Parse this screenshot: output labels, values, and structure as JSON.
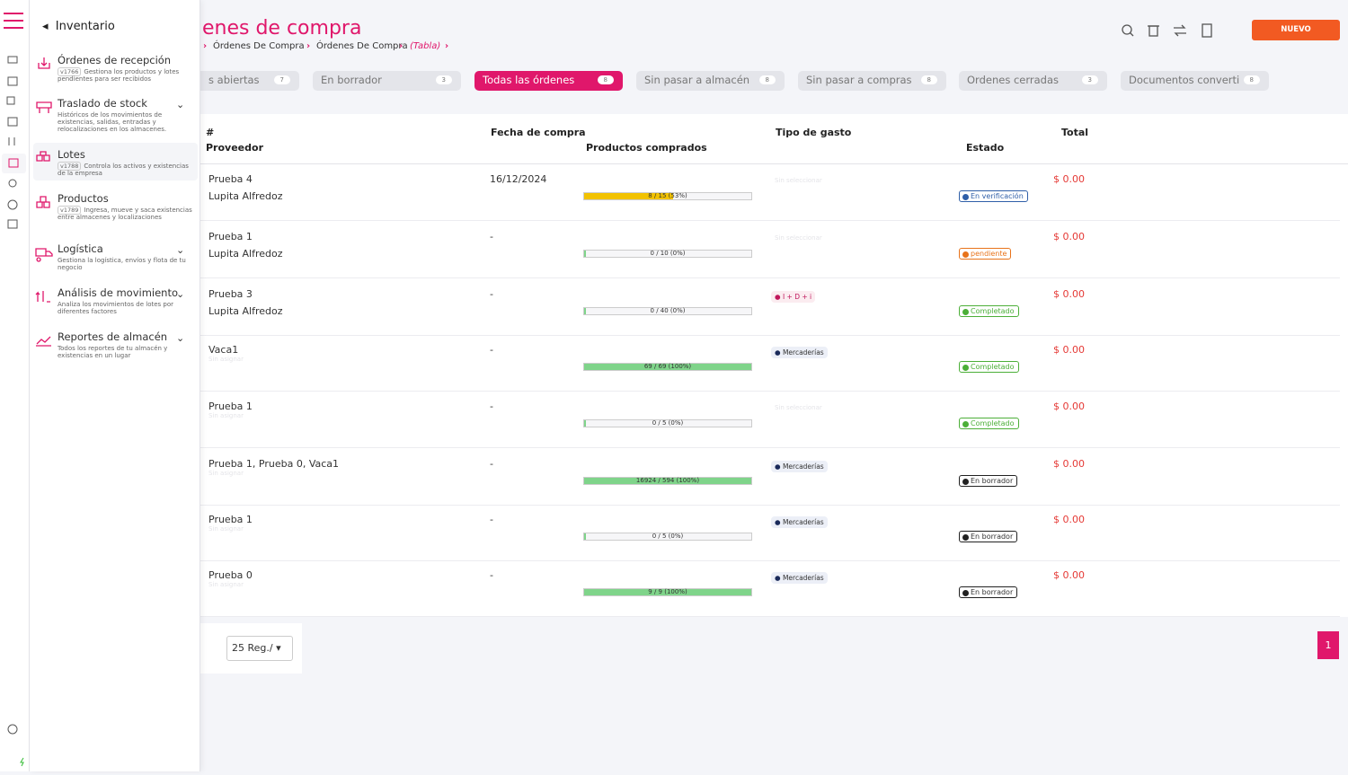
{
  "header": {
    "title": "enes de compra",
    "breadcrumb": [
      "Órdenes De Compra",
      "Órdenes De Compra",
      "(Tabla)"
    ],
    "new_button": "NUEVO"
  },
  "tabs": [
    {
      "label": "s abiertas",
      "count": "7"
    },
    {
      "label": "En borrador",
      "count": "3"
    },
    {
      "label": "Todas las órdenes",
      "count": "8",
      "active": true
    },
    {
      "label": "Sin pasar a almacén",
      "count": "8"
    },
    {
      "label": "Sin pasar a compras",
      "count": "8"
    },
    {
      "label": "Ordenes cerradas",
      "count": "3"
    },
    {
      "label": "Documentos converti",
      "count": "8"
    }
  ],
  "table": {
    "headers": {
      "number": "#",
      "provider": "Proveedor",
      "date": "Fecha de compra",
      "products": "Productos comprados",
      "expense": "Tipo de gasto",
      "status": "Estado",
      "total": "Total"
    },
    "rows": [
      {
        "name": "Prueba 4",
        "provider": "Lupita Alfredoz",
        "date": "16/12/2024",
        "progress_label": "8 / 15 (53%)",
        "progress": 53,
        "expense": "Sin seleccionar",
        "status": "En verificación",
        "status_color": "#2f5fa8",
        "total": "$ 0.00"
      },
      {
        "name": "Prueba 1",
        "provider": "Lupita Alfredoz",
        "date": "-",
        "progress_label": "0 / 10 (0%)",
        "progress": 0,
        "expense": "Sin seleccionar",
        "status": "pendiente",
        "status_color": "#e8731a",
        "total": "$ 0.00"
      },
      {
        "name": "Prueba 3",
        "provider": "Lupita Alfredoz",
        "date": "-",
        "progress_label": "0 / 40 (0%)",
        "progress": 0,
        "expense": "I + D + i",
        "status": "Completado",
        "status_color": "#4caf38",
        "total": "$ 0.00"
      },
      {
        "name": "Vaca1",
        "provider": "Sin asignar",
        "date": "-",
        "progress_label": "69 / 69 (100%)",
        "progress": 100,
        "expense": "Mercaderías",
        "status": "Completado",
        "status_color": "#4caf38",
        "total": "$ 0.00"
      },
      {
        "name": "Prueba 1",
        "provider": "Sin asignar",
        "date": "-",
        "progress_label": "0 / 5 (0%)",
        "progress": 0,
        "expense": "Sin seleccionar",
        "status": "Completado",
        "status_color": "#4caf38",
        "total": "$ 0.00"
      },
      {
        "name": "Prueba 1, Prueba 0, Vaca1",
        "provider": "Sin asignar",
        "date": "-",
        "progress_label": "16924 / 594 (100%)",
        "progress": 100,
        "expense": "Mercaderías",
        "status": "En borrador",
        "status_color": "#222222",
        "total": "$ 0.00"
      },
      {
        "name": "Prueba 1",
        "provider": "Sin asignar",
        "date": "-",
        "progress_label": "0 / 5 (0%)",
        "progress": 0,
        "expense": "Mercaderías",
        "status": "En borrador",
        "status_color": "#222222",
        "total": "$ 0.00"
      },
      {
        "name": "Prueba 0",
        "provider": "Sin asignar",
        "date": "-",
        "progress_label": "9 / 9 (100%)",
        "progress": 100,
        "expense": "Mercaderías",
        "status": "En borrador",
        "status_color": "#222222",
        "total": "$ 0.00"
      }
    ]
  },
  "pagination": {
    "per_page": "25 Reg./",
    "page": "1"
  },
  "drawer": {
    "title": "Inventario",
    "items": [
      {
        "title": "Órdenes de recepción",
        "badge": "v1766",
        "description": "Gestiona los productos y lotes pendientes para ser recibidos"
      },
      {
        "title": "Traslado de stock",
        "description": "Históricos de los movimientos de existencias, salidas, entradas y relocalizaciones en los almacenes."
      },
      {
        "title": "Lotes",
        "badge": "v1788",
        "description": "Controla los activos y existencias de la empresa",
        "active": true
      },
      {
        "title": "Productos",
        "badge": "v1789",
        "description": "Ingresa, mueve y saca existencias entre almacenes y localizaciones"
      },
      {
        "title": "Logística",
        "description": "Gestiona la logística, envíos y flota de tu negocio"
      },
      {
        "title": "Análisis de movimiento",
        "description": "Analiza los movimientos de lotes por diferentes factores"
      },
      {
        "title": "Reportes de almacén",
        "description": "Todos los reportes de tu almacén y existencias en un lugar"
      }
    ]
  }
}
